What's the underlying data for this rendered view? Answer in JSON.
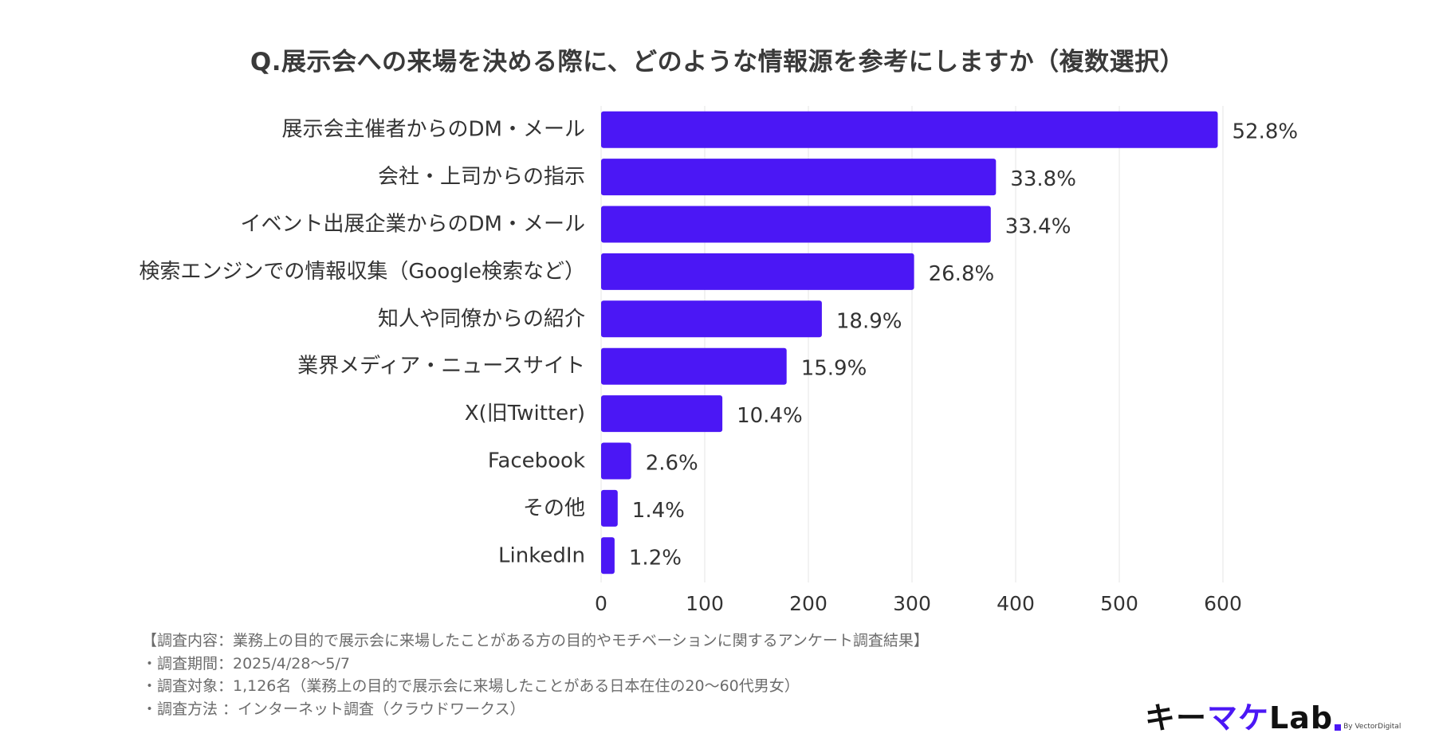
{
  "chart_data": {
    "type": "bar",
    "orientation": "horizontal",
    "title": "Q.展示会への来場を決める際に、どのような情報源を参考にしますか（複数選択）",
    "categories": [
      "展示会主催者からのDM・メール",
      "会社・上司からの指示",
      "イベント出展企業からのDM・メール",
      "検索エンジンでの情報収集（Google検索など）",
      "知人や同僚からの紹介",
      "業界メディア・ニュースサイト",
      "X(旧Twitter)",
      "Facebook",
      "その他",
      "LinkedIn"
    ],
    "values": [
      595,
      381,
      376,
      302,
      213,
      179,
      117,
      29,
      16,
      13
    ],
    "value_labels": [
      "52.8%",
      "33.8%",
      "33.4%",
      "26.8%",
      "18.9%",
      "15.9%",
      "10.4%",
      "2.6%",
      "1.4%",
      "1.2%"
    ],
    "xlim": [
      0,
      600
    ],
    "xticks": [
      "0",
      "100",
      "200",
      "300",
      "400",
      "500",
      "600"
    ],
    "xtick_values": [
      0,
      100,
      200,
      300,
      400,
      500,
      600
    ],
    "grid": true,
    "legend": "none",
    "bar_color": "#4b17f5",
    "grid_color": "#e6e6e6"
  },
  "notes": [
    "【調査内容：業務上の目的で展示会に来場したことがある方の目的やモチベーションに関するアンケート調査結果】",
    "・調査期間：2025/4/28〜5/7",
    "・調査対象：1,126名（業務上の目的で展示会に来場したことがある日本在住の20〜60代男女）",
    "・調査方法 ：インターネット調査（クラウドワークス）"
  ],
  "logo": {
    "part1": "キー",
    "part2": "マケ",
    "part3": "Lab",
    "byline": "By VectorDigital"
  },
  "colors": {
    "accent": "#4b17f5",
    "text": "#333333",
    "notes_text": "#6b6b6b"
  }
}
